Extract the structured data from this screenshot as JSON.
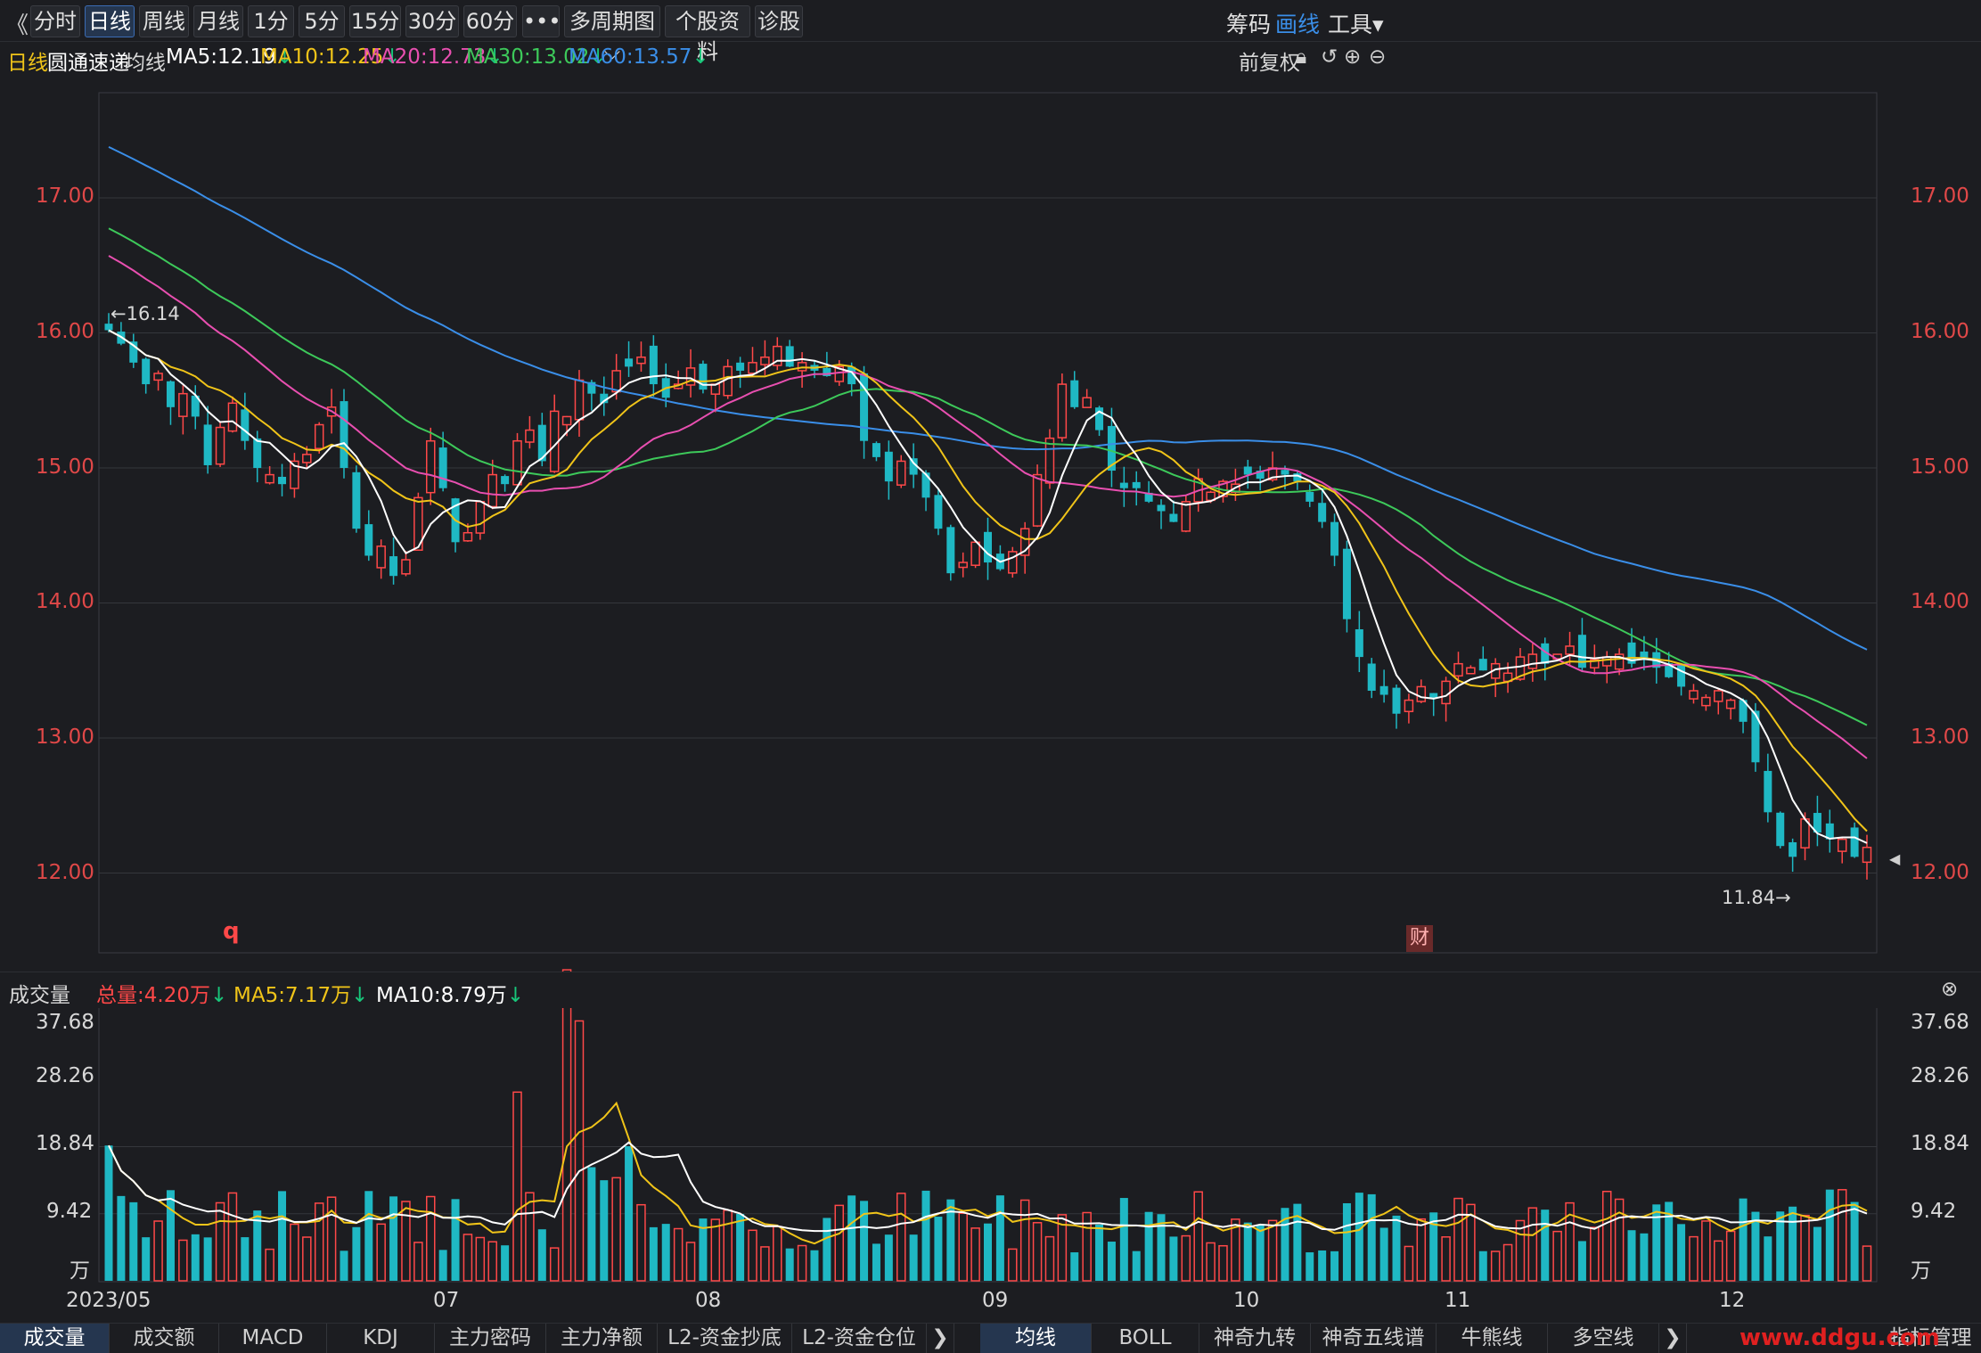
{
  "toolbar": {
    "back": "《",
    "tabs": [
      "分时",
      "日线",
      "周线",
      "月线",
      "1分",
      "5分",
      "15分",
      "30分",
      "60分",
      "•••",
      "多周期图 ⌵",
      "个股资料",
      "诊股"
    ],
    "active": "日线",
    "right": [
      "筹码",
      "画线",
      "工具▾"
    ]
  },
  "ma_bar": {
    "period": "日线",
    "stock": "圆通速递",
    "label": "均线",
    "ma5": "MA5:12.19",
    "ma10": "MA10:12.25",
    "ma20": "MA20:12.73",
    "ma30": "MA30:13.02",
    "ma60": "MA60:13.57",
    "adjust": "前复权"
  },
  "price_axis": [
    "17.00",
    "16.00",
    "15.00",
    "14.00",
    "13.00",
    "12.00"
  ],
  "annotations": {
    "high": "←16.14",
    "low": "11.84→",
    "q_marker": "q",
    "cai_marker": "财"
  },
  "volume_bar": {
    "title": "成交量",
    "total": "总量:4.20万",
    "ma5": "MA5:7.17万",
    "ma10": "MA10:8.79万"
  },
  "volume_axis": [
    "37.68",
    "28.26",
    "18.84",
    "9.42",
    "万"
  ],
  "x_axis": [
    "2023/05",
    "07",
    "08",
    "09",
    "10",
    "11",
    "12"
  ],
  "bottom_tabs_left": [
    "成交量",
    "成交额",
    "MACD",
    "KDJ",
    "主力密码",
    "主力净额",
    "L2-资金抄底",
    "L2-资金仓位"
  ],
  "bottom_tabs_right": [
    "均线",
    "BOLL",
    "神奇九转",
    "神奇五线谱",
    "牛熊线",
    "多空线"
  ],
  "bottom_right": "指标管理",
  "watermark": "www.ddgu.com",
  "colors": {
    "up": "#ff4848",
    "down": "#1fb8c4",
    "ma5": "#ffffff",
    "ma10": "#f0c419",
    "ma20": "#e84fb0",
    "ma30": "#3dc95a",
    "ma60": "#3a8ee8",
    "bg": "#1c1d21"
  },
  "chart_data": {
    "type": "line",
    "title": "圆通速递 日线",
    "ylim": [
      11.6,
      17.6
    ],
    "closes": [
      16.02,
      15.92,
      15.78,
      15.62,
      15.7,
      15.45,
      15.55,
      15.38,
      15.02,
      15.3,
      15.48,
      15.2,
      15.0,
      14.95,
      14.88,
      15.05,
      15.1,
      15.32,
      15.45,
      15.0,
      14.55,
      14.35,
      14.42,
      14.2,
      14.32,
      14.78,
      15.2,
      14.85,
      14.45,
      14.52,
      14.75,
      14.95,
      14.88,
      15.2,
      15.28,
      15.05,
      15.42,
      15.38,
      15.65,
      15.55,
      15.48,
      15.72,
      15.75,
      15.82,
      15.62,
      15.52,
      15.62,
      15.74,
      15.58,
      15.62,
      15.75,
      15.72,
      15.78,
      15.82,
      15.9,
      15.75,
      15.78,
      15.72,
      15.68,
      15.75,
      15.62,
      15.2,
      15.08,
      14.9,
      15.05,
      14.95,
      14.78,
      14.55,
      14.22,
      14.3,
      14.45,
      14.3,
      14.25,
      14.38,
      14.55,
      14.95,
      15.22,
      15.62,
      15.45,
      15.52,
      15.28,
      14.98,
      14.85,
      14.85,
      14.75,
      14.68,
      14.6,
      14.75,
      14.92,
      14.82,
      14.9,
      14.88,
      14.95,
      14.92,
      15.0,
      14.95,
      14.9,
      14.75,
      14.6,
      14.35,
      13.88,
      13.6,
      13.35,
      13.32,
      13.18,
      13.28,
      13.38,
      13.3,
      13.42,
      13.55,
      13.52,
      13.5,
      13.55,
      13.48,
      13.6,
      13.62,
      13.55,
      13.62,
      13.68,
      13.52,
      13.58,
      13.6,
      13.62,
      13.55,
      13.58,
      13.52,
      13.45,
      13.38,
      13.35,
      13.3,
      13.35,
      13.28,
      13.12,
      12.82,
      12.45,
      12.2,
      12.12,
      12.4,
      12.3,
      12.25,
      12.25,
      12.12,
      12.19
    ],
    "vol_ma5_end": 7.17,
    "vol_ma10_end": 8.79,
    "vol_ylim": [
      0,
      37.68
    ]
  }
}
